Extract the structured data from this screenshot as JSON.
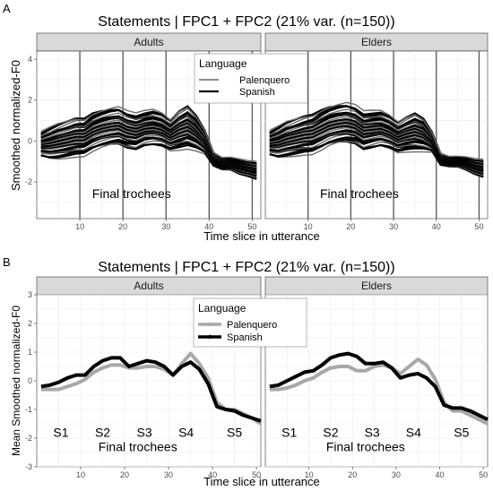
{
  "figure": {
    "panel_labels": [
      "A",
      "B"
    ]
  },
  "chart_data": [
    {
      "id": "A",
      "type": "line",
      "title": "Statements | FPC1 + FPC2 (21% var. (n=150))",
      "xlabel": "Time slice in utterance",
      "ylabel": "Smoothed normalized-F0",
      "facets": [
        "Adults",
        "Elders"
      ],
      "xlim": [
        0,
        52
      ],
      "ylim": [
        -3.8,
        4.4
      ],
      "xticks": [
        10,
        20,
        30,
        40,
        50
      ],
      "yticks": [
        -2,
        0,
        2,
        4
      ],
      "grid": true,
      "vlines": [
        10,
        20,
        30,
        40,
        50
      ],
      "annotation": "Final trochees",
      "legend": {
        "title": "Language",
        "placement": "top-center",
        "entries": [
          {
            "name": "Palenquero",
            "color": "#666666"
          },
          {
            "name": "Spanish",
            "color": "#000000"
          }
        ]
      },
      "x": [
        1,
        3,
        5,
        7,
        9,
        11,
        13,
        15,
        17,
        19,
        21,
        23,
        25,
        27,
        29,
        31,
        33,
        35,
        37,
        39,
        41,
        43,
        45,
        47,
        49,
        51
      ],
      "series": [
        {
          "name": "Adults",
          "values": [
            -0.15,
            -0.1,
            0.0,
            0.1,
            0.2,
            0.2,
            0.45,
            0.6,
            0.7,
            0.75,
            0.55,
            0.45,
            0.6,
            0.65,
            0.55,
            0.3,
            0.55,
            0.7,
            0.4,
            -0.05,
            -0.9,
            -1.1,
            -1.1,
            -1.25,
            -1.35,
            -1.45
          ]
        },
        {
          "name": "Elders",
          "values": [
            -0.1,
            -0.05,
            0.1,
            0.2,
            0.3,
            0.35,
            0.55,
            0.75,
            0.85,
            0.9,
            0.8,
            0.5,
            0.55,
            0.6,
            0.45,
            0.2,
            0.35,
            0.45,
            0.3,
            -0.05,
            -0.9,
            -1.0,
            -1.0,
            -1.1,
            -1.25,
            -1.35
          ]
        }
      ],
      "spread": {
        "Adults": [
          0.55,
          0.7,
          0.8,
          0.85,
          0.9,
          0.9,
          0.95,
          0.95,
          0.95,
          0.95,
          0.9,
          0.85,
          0.8,
          0.8,
          0.75,
          0.7,
          0.9,
          1.0,
          0.85,
          0.6,
          0.35,
          0.3,
          0.3,
          0.35,
          0.35,
          0.4
        ],
        "Elders": [
          0.55,
          0.7,
          0.8,
          0.85,
          0.9,
          0.95,
          1.0,
          1.0,
          1.0,
          1.0,
          0.95,
          0.9,
          0.85,
          0.8,
          0.75,
          0.7,
          0.8,
          0.9,
          0.8,
          0.5,
          0.3,
          0.25,
          0.25,
          0.3,
          0.35,
          0.4
        ]
      }
    },
    {
      "id": "B",
      "type": "line",
      "title": "Statements | FPC1 + FPC2 (21% var. (n=150))",
      "xlabel": "Time slice in utterance",
      "ylabel": "Mean Smoothed normalized-F0",
      "facets": [
        "Adults",
        "Elders"
      ],
      "xlim": [
        0,
        51
      ],
      "ylim": [
        -3,
        3
      ],
      "xticks": [
        10,
        20,
        30,
        40,
        50
      ],
      "yticks": [
        -3,
        -2,
        -1,
        0,
        1,
        2,
        3
      ],
      "grid": true,
      "annotation": "Final trochees",
      "syllable_labels": [
        {
          "text": "S1",
          "x": 5.5
        },
        {
          "text": "S2",
          "x": 15
        },
        {
          "text": "S3",
          "x": 24.5
        },
        {
          "text": "S4",
          "x": 34
        },
        {
          "text": "S5",
          "x": 45
        }
      ],
      "legend": {
        "title": "Language",
        "placement": "top-center",
        "entries": [
          {
            "name": "Palenquero",
            "color": "#a8a8a8"
          },
          {
            "name": "Spanish",
            "color": "#000000"
          }
        ]
      },
      "x": [
        1,
        3,
        5,
        7,
        9,
        11,
        13,
        15,
        17,
        19,
        21,
        23,
        25,
        27,
        29,
        31,
        33,
        35,
        37,
        39,
        41,
        43,
        45,
        47,
        49,
        51
      ],
      "facet_series": {
        "Adults": [
          {
            "name": "Palenquero",
            "values": [
              -0.3,
              -0.3,
              -0.3,
              -0.2,
              -0.1,
              0.05,
              0.3,
              0.45,
              0.55,
              0.55,
              0.45,
              0.45,
              0.5,
              0.5,
              0.4,
              0.2,
              0.6,
              0.95,
              0.6,
              0.1,
              -0.75,
              -1.0,
              -1.0,
              -1.15,
              -1.3,
              -1.5
            ]
          },
          {
            "name": "Spanish",
            "values": [
              -0.2,
              -0.15,
              -0.05,
              0.1,
              0.2,
              0.2,
              0.5,
              0.7,
              0.8,
              0.8,
              0.5,
              0.6,
              0.7,
              0.65,
              0.5,
              0.2,
              0.5,
              0.65,
              0.4,
              -0.1,
              -0.9,
              -1.0,
              -1.05,
              -1.2,
              -1.3,
              -1.4
            ]
          }
        ],
        "Elders": [
          {
            "name": "Palenquero",
            "values": [
              -0.3,
              -0.3,
              -0.25,
              -0.15,
              0.0,
              0.1,
              0.3,
              0.45,
              0.5,
              0.5,
              0.35,
              0.35,
              0.5,
              0.55,
              0.45,
              0.25,
              0.5,
              0.75,
              0.55,
              0.05,
              -0.75,
              -1.05,
              -1.05,
              -1.2,
              -1.35,
              -1.5
            ]
          },
          {
            "name": "Spanish",
            "values": [
              -0.2,
              -0.15,
              0.0,
              0.15,
              0.3,
              0.35,
              0.55,
              0.8,
              0.9,
              0.95,
              0.85,
              0.6,
              0.6,
              0.65,
              0.45,
              0.1,
              0.2,
              0.25,
              0.1,
              -0.2,
              -0.85,
              -0.95,
              -0.95,
              -1.05,
              -1.2,
              -1.35
            ]
          }
        ]
      }
    }
  ]
}
